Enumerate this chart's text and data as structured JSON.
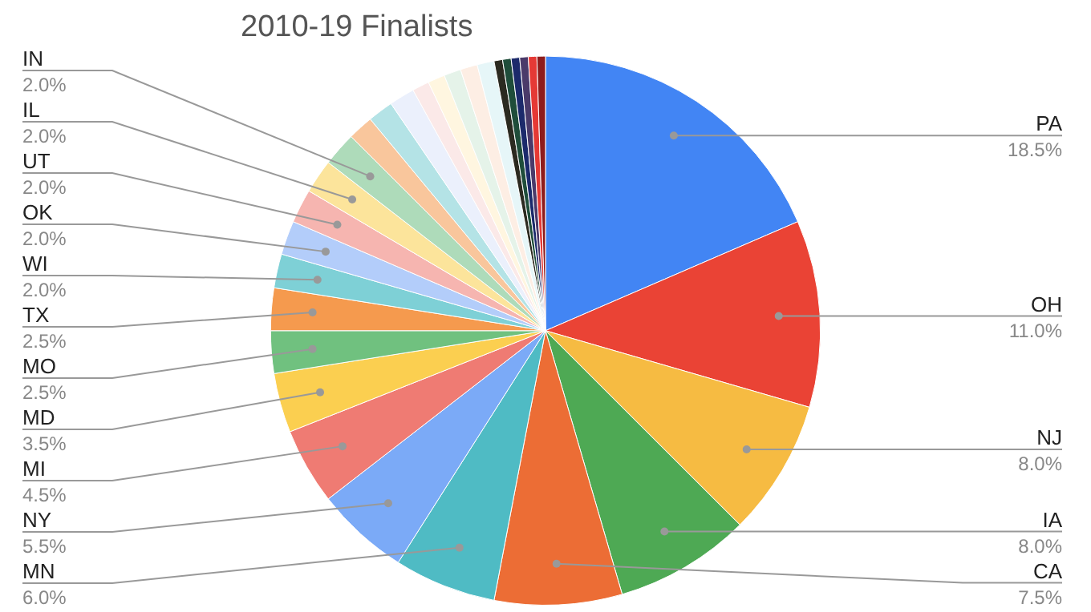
{
  "chart_data": {
    "type": "pie",
    "title": "2010-19 Finalists",
    "legend": false,
    "categories": [
      "PA",
      "OH",
      "NJ",
      "IA",
      "CA",
      "MN",
      "NY",
      "MI",
      "MD",
      "MO",
      "TX",
      "WI",
      "OK",
      "UT",
      "IL",
      "IN",
      null,
      null,
      null,
      null,
      null,
      null,
      null,
      null,
      null,
      null,
      null,
      null,
      null,
      null
    ],
    "values": [
      18.5,
      11.0,
      8.0,
      8.0,
      7.5,
      6.0,
      5.5,
      4.5,
      3.5,
      2.5,
      2.5,
      2.0,
      2.0,
      2.0,
      2.0,
      2.0,
      1.5,
      1.5,
      1.5,
      1.0,
      1.0,
      1.0,
      1.0,
      1.0,
      0.5,
      0.5,
      0.5,
      0.5,
      0.5,
      0.5
    ],
    "value_labels": [
      "18.5%",
      "11.0%",
      "8.0%",
      "8.0%",
      "7.5%",
      "6.0%",
      "5.5%",
      "4.5%",
      "3.5%",
      "2.5%",
      "2.5%",
      "2.0%",
      "2.0%",
      "2.0%",
      "2.0%",
      "2.0%",
      null,
      null,
      null,
      null,
      null,
      null,
      null,
      null,
      null,
      null,
      null,
      null,
      null,
      null
    ],
    "colors": [
      "#4285f4",
      "#ea4335",
      "#f6bb42",
      "#4ea954",
      "#ec6d35",
      "#4fbbc4",
      "#7baaf7",
      "#ef7b73",
      "#fbcf50",
      "#70c17f",
      "#f59a4e",
      "#7ed0d6",
      "#b3cdfa",
      "#f6b5b0",
      "#fce49b",
      "#aedbba",
      "#f9c69c",
      "#b4e3e6",
      "#ebf0fc",
      "#fbe9e8",
      "#fff6e0",
      "#e5f3e9",
      "#fdeee4",
      "#e6f6f8",
      "#2b2a20",
      "#1f4d3a",
      "#1c2a6b",
      "#4a3a6a",
      "#e53935",
      "#8e1c1c"
    ]
  }
}
